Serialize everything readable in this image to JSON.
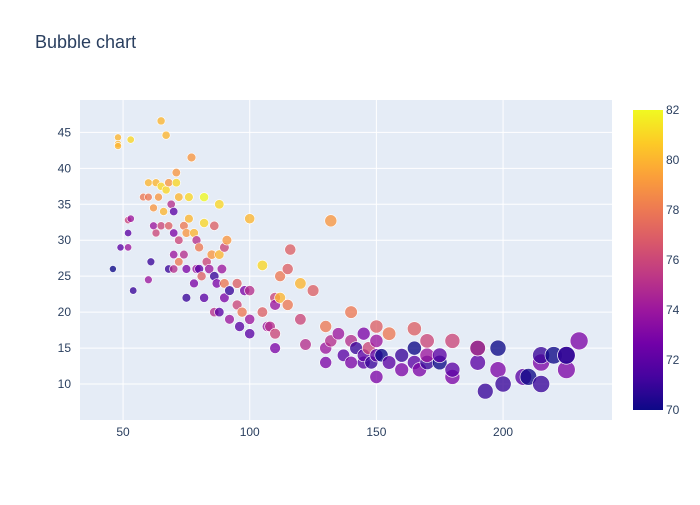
{
  "chart_data": {
    "type": "scatter",
    "title": "Bubble chart",
    "xlabel": "",
    "ylabel": "",
    "x_ticks": [
      50,
      100,
      150,
      200
    ],
    "y_ticks": [
      10,
      15,
      20,
      25,
      30,
      35,
      40,
      45
    ],
    "xlim": [
      33,
      243
    ],
    "ylim": [
      5,
      49.5
    ],
    "grid": true,
    "colorbar": {
      "range": [
        70,
        82
      ],
      "ticks": [
        70,
        72,
        74,
        76,
        78,
        80,
        82
      ],
      "colorscale": [
        "#0d0887",
        "#46039f",
        "#7201a8",
        "#9c179e",
        "#bd3786",
        "#d8576b",
        "#ed7953",
        "#fb9f3a",
        "#fdca26",
        "#f0f921"
      ]
    },
    "marker_size_range": [
      46,
      230
    ],
    "points": [
      [
        46,
        26,
        70
      ],
      [
        48,
        44.3,
        80
      ],
      [
        48,
        43.4,
        80
      ],
      [
        48,
        43.1,
        80
      ],
      [
        49,
        29,
        72
      ],
      [
        52,
        31,
        72
      ],
      [
        52,
        29,
        74
      ],
      [
        52,
        32.8,
        76
      ],
      [
        53,
        33,
        74
      ],
      [
        53,
        44,
        81
      ],
      [
        54,
        23,
        71
      ],
      [
        58,
        36,
        78
      ],
      [
        60,
        24.5,
        74
      ],
      [
        60,
        36,
        78
      ],
      [
        60,
        38,
        80
      ],
      [
        61,
        27,
        71
      ],
      [
        62,
        32,
        74
      ],
      [
        62,
        34.5,
        79
      ],
      [
        63,
        38,
        80
      ],
      [
        63,
        31,
        76
      ],
      [
        64,
        36,
        79
      ],
      [
        65,
        37.5,
        81
      ],
      [
        65,
        46.6,
        80
      ],
      [
        65,
        32,
        76
      ],
      [
        66,
        34,
        80
      ],
      [
        67,
        37,
        81
      ],
      [
        67,
        44.6,
        80
      ],
      [
        68,
        26,
        71
      ],
      [
        68,
        32,
        77
      ],
      [
        68,
        38,
        79
      ],
      [
        69,
        35,
        75
      ],
      [
        70,
        31,
        73
      ],
      [
        70,
        28,
        74
      ],
      [
        70,
        34,
        72
      ],
      [
        70,
        26,
        75
      ],
      [
        71,
        38,
        81
      ],
      [
        71,
        39.4,
        79
      ],
      [
        72,
        36,
        80
      ],
      [
        72,
        30,
        76
      ],
      [
        72,
        27,
        78
      ],
      [
        74,
        32,
        78
      ],
      [
        74,
        28,
        75
      ],
      [
        75,
        26,
        73
      ],
      [
        75,
        31,
        79
      ],
      [
        75,
        22,
        71
      ],
      [
        76,
        33,
        80
      ],
      [
        76,
        36,
        81
      ],
      [
        77,
        41.5,
        79
      ],
      [
        78,
        24,
        73
      ],
      [
        78,
        31,
        80
      ],
      [
        79,
        26,
        74
      ],
      [
        79,
        30,
        75
      ],
      [
        80,
        29,
        78
      ],
      [
        80,
        26,
        72
      ],
      [
        81,
        25,
        77
      ],
      [
        82,
        22,
        72
      ],
      [
        82,
        32.4,
        81
      ],
      [
        82,
        36,
        82
      ],
      [
        83,
        27,
        76
      ],
      [
        84,
        26,
        74
      ],
      [
        85,
        28,
        79
      ],
      [
        86,
        20,
        75
      ],
      [
        86,
        25,
        71
      ],
      [
        86,
        32,
        77
      ],
      [
        87,
        24,
        73
      ],
      [
        88,
        20,
        72
      ],
      [
        88,
        28,
        80
      ],
      [
        88,
        35,
        81
      ],
      [
        89,
        26,
        74
      ],
      [
        90,
        22,
        73
      ],
      [
        90,
        24,
        78
      ],
      [
        90,
        29,
        76
      ],
      [
        91,
        30,
        79
      ],
      [
        92,
        23,
        71
      ],
      [
        92,
        19,
        74
      ],
      [
        95,
        24,
        77
      ],
      [
        95,
        21,
        76
      ],
      [
        96,
        18,
        72
      ],
      [
        97,
        20,
        78
      ],
      [
        98,
        23,
        73
      ],
      [
        100,
        19,
        74
      ],
      [
        100,
        23,
        75
      ],
      [
        100,
        17,
        72
      ],
      [
        100,
        33,
        80
      ],
      [
        105,
        20,
        77
      ],
      [
        105,
        26.5,
        81
      ],
      [
        107,
        18,
        74
      ],
      [
        108,
        18,
        75
      ],
      [
        110,
        22,
        76
      ],
      [
        110,
        15,
        73
      ],
      [
        110,
        17,
        76
      ],
      [
        110,
        21,
        74
      ],
      [
        112,
        22,
        80
      ],
      [
        112,
        25,
        78
      ],
      [
        115,
        26,
        77
      ],
      [
        115,
        21,
        78
      ],
      [
        116,
        28.7,
        77
      ],
      [
        120,
        19,
        76
      ],
      [
        120,
        24,
        80
      ],
      [
        122,
        15.5,
        75
      ],
      [
        125,
        23,
        77
      ],
      [
        130,
        13,
        73
      ],
      [
        130,
        15,
        74
      ],
      [
        130,
        18,
        78
      ],
      [
        132,
        16,
        75
      ],
      [
        132,
        32.7,
        79
      ],
      [
        135,
        17,
        74
      ],
      [
        137,
        14,
        72
      ],
      [
        140,
        13,
        73
      ],
      [
        140,
        16,
        75
      ],
      [
        140,
        20,
        78
      ],
      [
        142,
        15,
        71
      ],
      [
        145,
        13,
        72
      ],
      [
        145,
        14,
        72
      ],
      [
        145,
        17,
        73
      ],
      [
        147,
        15,
        76
      ],
      [
        148,
        13,
        71
      ],
      [
        150,
        11,
        73
      ],
      [
        150,
        14,
        72
      ],
      [
        150,
        16,
        74
      ],
      [
        150,
        18,
        77
      ],
      [
        152,
        14,
        70
      ],
      [
        155,
        13,
        72
      ],
      [
        155,
        17,
        78
      ],
      [
        160,
        12,
        73
      ],
      [
        160,
        14,
        71
      ],
      [
        165,
        13,
        72
      ],
      [
        165,
        15,
        70
      ],
      [
        165,
        17.7,
        77
      ],
      [
        167,
        12,
        73
      ],
      [
        170,
        13,
        71
      ],
      [
        170,
        14,
        74
      ],
      [
        170,
        16,
        76
      ],
      [
        175,
        13,
        70
      ],
      [
        175,
        14,
        72
      ],
      [
        180,
        11,
        73
      ],
      [
        180,
        12,
        72
      ],
      [
        180,
        16,
        76
      ],
      [
        190,
        13,
        72
      ],
      [
        190,
        15,
        70
      ],
      [
        190,
        15,
        75
      ],
      [
        193,
        9,
        71
      ],
      [
        198,
        12,
        73
      ],
      [
        198,
        15,
        70
      ],
      [
        200,
        10,
        71
      ],
      [
        208,
        11,
        72
      ],
      [
        210,
        11,
        70
      ],
      [
        215,
        10,
        71
      ],
      [
        215,
        13,
        73
      ],
      [
        215,
        14,
        71
      ],
      [
        220,
        14,
        70
      ],
      [
        225,
        12,
        73
      ],
      [
        225,
        14,
        70
      ],
      [
        225,
        14,
        71
      ],
      [
        230,
        16,
        73
      ]
    ]
  }
}
